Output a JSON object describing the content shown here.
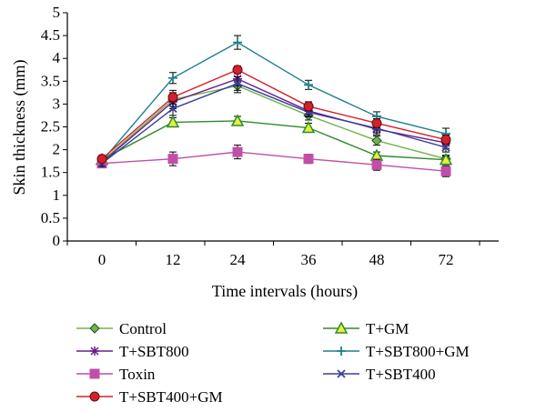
{
  "chart_data": {
    "type": "line",
    "xlabel": "Time intervals (hours)",
    "ylabel": "Skin thickness (mm)",
    "categories": [
      "0",
      "12",
      "24",
      "36",
      "48",
      "72"
    ],
    "ylim": [
      0,
      5
    ],
    "yticks": [
      "0",
      "0.5",
      "1",
      "1.5",
      "2",
      "2.5",
      "3",
      "3.5",
      "4",
      "4.5",
      "5"
    ],
    "grid": false,
    "legend_position": "bottom",
    "series": [
      {
        "name": "Control",
        "values": [
          1.75,
          3.1,
          3.4,
          2.75,
          2.2,
          1.8
        ],
        "errors": [
          0.07,
          0.15,
          0.15,
          0.1,
          0.1,
          0.08
        ],
        "color": "#73b34a",
        "marker": "diamond"
      },
      {
        "name": "T+GM",
        "values": [
          1.78,
          2.6,
          2.63,
          2.48,
          1.87,
          1.78
        ],
        "errors": [
          0.07,
          0.1,
          0.1,
          0.1,
          0.08,
          0.08
        ],
        "color": "#2e8b2e",
        "marker": "triangle"
      },
      {
        "name": "T+SBT800",
        "values": [
          1.72,
          3.05,
          3.55,
          2.85,
          2.45,
          2.15
        ],
        "errors": [
          0.07,
          0.15,
          0.15,
          0.1,
          0.12,
          0.12
        ],
        "color": "#6a1e8c",
        "marker": "star"
      },
      {
        "name": "T+SBT800+GM",
        "values": [
          1.75,
          3.57,
          4.35,
          3.42,
          2.73,
          2.35
        ],
        "errors": [
          0.07,
          0.12,
          0.15,
          0.1,
          0.1,
          0.12
        ],
        "color": "#1f7f8c",
        "marker": "plus"
      },
      {
        "name": "Toxin",
        "values": [
          1.7,
          1.8,
          1.95,
          1.8,
          1.67,
          1.53
        ],
        "errors": [
          0.07,
          0.15,
          0.15,
          0.1,
          0.12,
          0.12
        ],
        "color": "#c14fa8",
        "marker": "square"
      },
      {
        "name": "T+SBT400",
        "values": [
          1.7,
          2.9,
          3.45,
          2.82,
          2.47,
          2.05
        ],
        "errors": [
          0.07,
          0.15,
          0.15,
          0.1,
          0.1,
          0.1
        ],
        "color": "#3a3f9c",
        "marker": "x"
      },
      {
        "name": "T+SBT400+GM",
        "values": [
          1.8,
          3.15,
          3.75,
          2.95,
          2.58,
          2.22
        ],
        "errors": [
          0.07,
          0.15,
          0.08,
          0.1,
          0.1,
          0.1
        ],
        "color": "#d4202a",
        "marker": "circle"
      }
    ]
  }
}
